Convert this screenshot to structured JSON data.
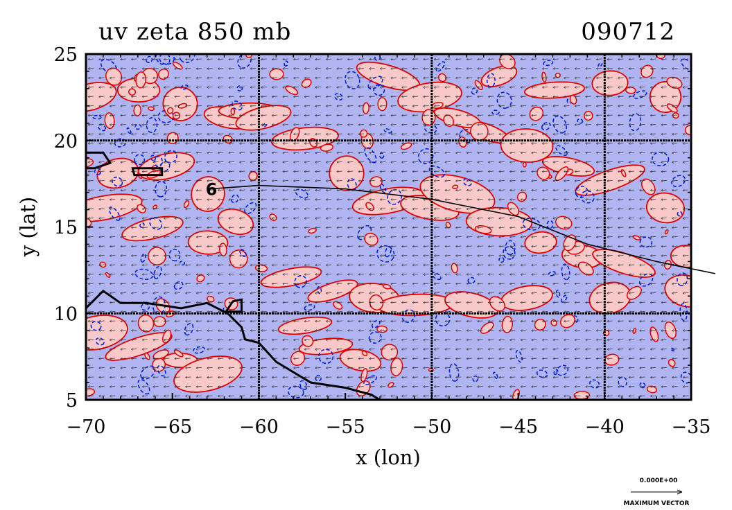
{
  "title_left": "uv zeta 850 mb",
  "title_right": "090712",
  "x_axis": {
    "label": "x (lon)",
    "range": [
      -70,
      -35
    ],
    "ticks": [
      {
        "value": -70,
        "label": "−70"
      },
      {
        "value": -65,
        "label": "−65"
      },
      {
        "value": -60,
        "label": "−60"
      },
      {
        "value": -55,
        "label": "−55"
      },
      {
        "value": -50,
        "label": "−50"
      },
      {
        "value": -45,
        "label": "−45"
      },
      {
        "value": -40,
        "label": "−40"
      },
      {
        "value": -35,
        "label": "−35"
      }
    ],
    "grid_lines": [
      -60,
      -50,
      -40
    ]
  },
  "y_axis": {
    "label": "y (lat)",
    "range": [
      5,
      25
    ],
    "ticks": [
      {
        "value": 5,
        "label": "5"
      },
      {
        "value": 10,
        "label": "10"
      },
      {
        "value": 15,
        "label": "15"
      },
      {
        "value": 20,
        "label": "20"
      },
      {
        "value": 25,
        "label": "25"
      }
    ],
    "grid_lines": [
      10,
      20
    ]
  },
  "vector_key": {
    "value_label": "0.000E+00",
    "caption": "MAXIMUM VECTOR"
  },
  "colors": {
    "positive_fill": "#f9c8c8",
    "negative_fill": "#b0b4f0",
    "positive_contour": "#e00000",
    "negative_contour": "#0022dd",
    "grid": "#000000",
    "coastline": "#000000"
  },
  "storm_track": [
    {
      "lon": -62.8,
      "lat": 17.2
    },
    {
      "lon": -60,
      "lat": 17.4
    },
    {
      "lon": -55,
      "lat": 17.2
    },
    {
      "lon": -50,
      "lat": 16.6
    },
    {
      "lon": -45,
      "lat": 15.6
    },
    {
      "lon": -41,
      "lat": 14.0
    },
    {
      "lon": -37,
      "lat": 13.0
    },
    {
      "lon": -33.6,
      "lat": 12.3
    }
  ],
  "coastline_south_america": [
    {
      "lon": -70,
      "lat": 10.3
    },
    {
      "lon": -69,
      "lat": 11.3
    },
    {
      "lon": -68,
      "lat": 10.6
    },
    {
      "lon": -66.5,
      "lat": 10.6
    },
    {
      "lon": -64.5,
      "lat": 10.3
    },
    {
      "lon": -63,
      "lat": 10.6
    },
    {
      "lon": -61.8,
      "lat": 10.0
    },
    {
      "lon": -61,
      "lat": 9.2
    },
    {
      "lon": -60.8,
      "lat": 8.5
    },
    {
      "lon": -60,
      "lat": 8.3
    },
    {
      "lon": -59,
      "lat": 7.2
    },
    {
      "lon": -58,
      "lat": 6.6
    },
    {
      "lon": -57,
      "lat": 6.0
    },
    {
      "lon": -55,
      "lat": 5.7
    },
    {
      "lon": -53.5,
      "lat": 5.3
    },
    {
      "lon": -53,
      "lat": 5.0
    }
  ],
  "hispaniola_coast": [
    {
      "lon": -70,
      "lat": 19.3
    },
    {
      "lon": -69,
      "lat": 19.3
    },
    {
      "lon": -68.6,
      "lat": 18.7
    },
    {
      "lon": -69.5,
      "lat": 18.4
    },
    {
      "lon": -70,
      "lat": 18.4
    }
  ],
  "puerto_rico": [
    {
      "lon": -67.3,
      "lat": 18.4
    },
    {
      "lon": -65.6,
      "lat": 18.4
    },
    {
      "lon": -65.6,
      "lat": 18.0
    },
    {
      "lon": -67.2,
      "lat": 18.0
    }
  ],
  "trinidad": [
    {
      "lon": -61.5,
      "lat": 10.7
    },
    {
      "lon": -61.0,
      "lat": 10.8
    },
    {
      "lon": -61.0,
      "lat": 10.1
    },
    {
      "lon": -61.9,
      "lat": 10.1
    }
  ],
  "storm_symbol": {
    "lon": -62.8,
    "lat": 17.2
  }
}
